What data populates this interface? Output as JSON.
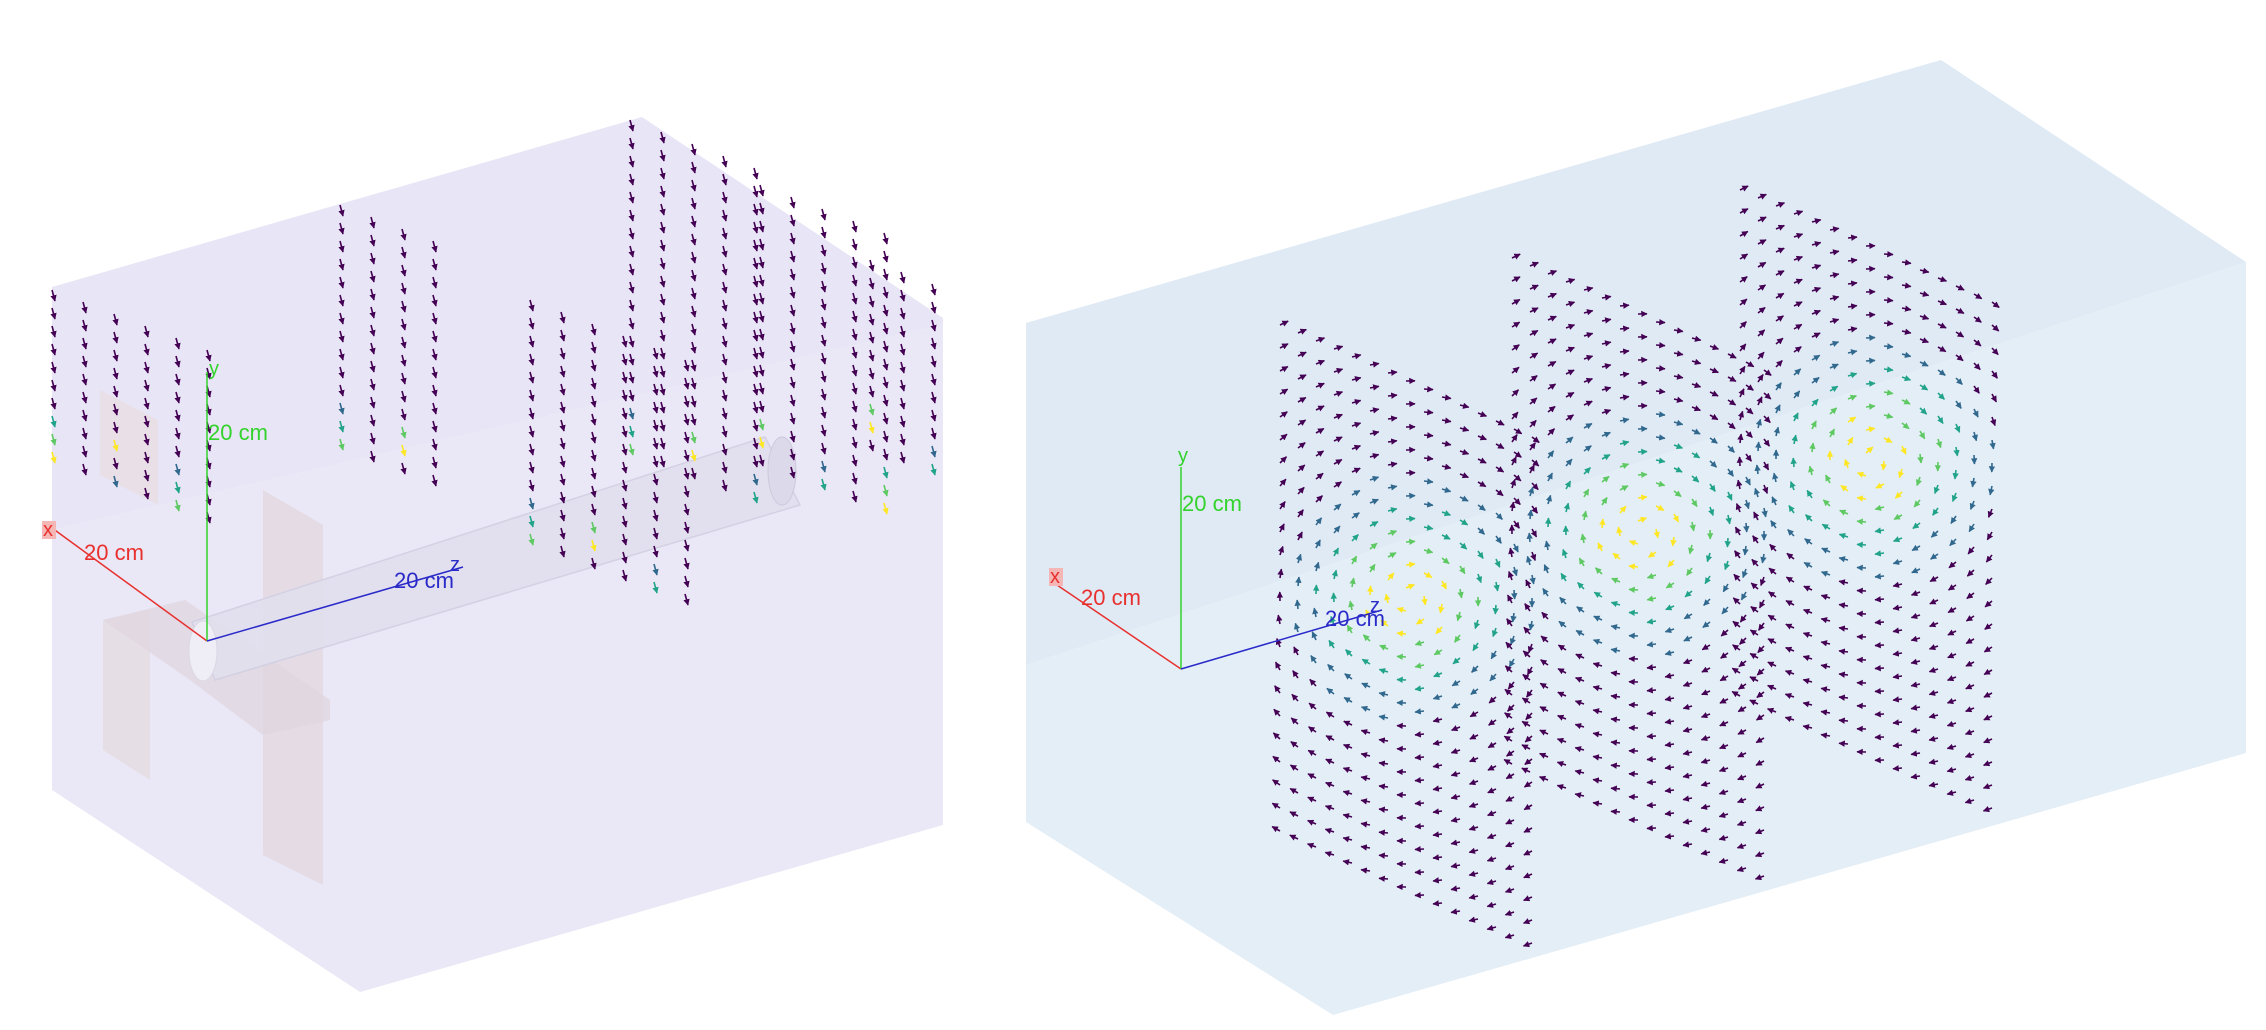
{
  "views": [
    {
      "id": "left",
      "axes": {
        "x": {
          "letter": "x",
          "label": "20 cm",
          "color": "#e8312f"
        },
        "y": {
          "letter": "y",
          "label": "20 cm",
          "color": "#33d22c"
        },
        "z": {
          "letter": "z",
          "label": "20 cm",
          "color": "#2a2ac9"
        }
      },
      "box_color": "#e6e4f4",
      "part_color": "#d9d3e4",
      "rod_color": "#e4e2ee",
      "field_planes": 6
    },
    {
      "id": "right",
      "axes": {
        "x": {
          "letter": "x",
          "label": "20 cm",
          "color": "#e8312f"
        },
        "y": {
          "letter": "y",
          "label": "20 cm",
          "color": "#33d22c"
        },
        "z": {
          "letter": "z",
          "label": "20 cm",
          "color": "#2a2ac9"
        }
      },
      "box_color": "#dce9f5",
      "field_planes": 3
    }
  ],
  "colormap": [
    "#440154",
    "#31688e",
    "#21a38a",
    "#5ec962",
    "#fde725"
  ]
}
